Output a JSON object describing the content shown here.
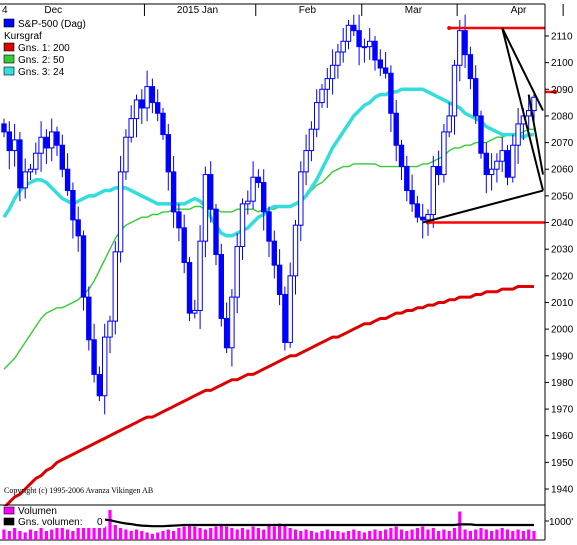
{
  "chart_data": {
    "type": "candlestick",
    "y_unit_note": "",
    "x_axis": {
      "labels": [
        {
          "text": "4",
          "at_index": 0
        },
        {
          "text": "Dec",
          "at_index": 8
        },
        {
          "text": "2015 Jan",
          "at_index": 33
        },
        {
          "text": "Feb",
          "at_index": 56
        },
        {
          "text": "Mar",
          "at_index": 76
        },
        {
          "text": "Apr",
          "at_index": 96
        }
      ],
      "separator_indices": [
        27,
        48,
        68,
        86,
        106
      ]
    },
    "y_axis": {
      "min": 1934,
      "max": 2122,
      "ticks": [
        1940,
        1950,
        1960,
        1970,
        1980,
        1990,
        2000,
        2010,
        2020,
        2030,
        2040,
        2050,
        2060,
        2070,
        2080,
        2090,
        2100,
        2110
      ]
    },
    "grid": false,
    "legend": {
      "placement": "top-left",
      "entries": [
        {
          "label": "S&P-500 (Dag)",
          "color": "#0000ff",
          "kind": "box"
        },
        {
          "label": "Kursgraf",
          "color": "",
          "kind": "header"
        },
        {
          "label": "Gns. 1: 200",
          "color": "#dd0000",
          "kind": "box"
        },
        {
          "label": "Gns. 2: 50",
          "color": "#33cc33",
          "kind": "box"
        },
        {
          "label": "Gns. 3: 24",
          "color": "#33dddd",
          "kind": "box"
        }
      ]
    },
    "copyright": "Copyright (c) 1995-2006 Avanza Vikingen AB",
    "colors": {
      "up_candle": "#ffffff",
      "down_candle": "#0000ff",
      "candle_outline": "#0000ff",
      "ma200": "#dd0000",
      "ma50": "#33cc33",
      "ma24": "#33dddd",
      "resistance": "#ff0000",
      "trendline": "#000000"
    },
    "close": [
      2074,
      2067,
      2071,
      2053,
      2059,
      2060,
      2066,
      2072,
      2068,
      2074,
      2069,
      2060,
      2052,
      2041,
      2035,
      2012,
      1996,
      1983,
      1975,
      1997,
      2003,
      2029,
      2059,
      2072,
      2079,
      2086,
      2083,
      2091,
      2085,
      2081,
      2073,
      2059,
      2044,
      2038,
      2025,
      2006,
      2007,
      2033,
      2058,
      2045,
      2028,
      2004,
      1993,
      2012,
      2031,
      2047,
      2048,
      2057,
      2055,
      2044,
      2033,
      2024,
      2013,
      1995,
      2020,
      2039,
      2059,
      2067,
      2075,
      2085,
      2090,
      2094,
      2099,
      2104,
      2108,
      2114,
      2112,
      2106,
      2106,
      2108,
      2101,
      2098,
      2096,
      2081,
      2069,
      2061,
      2052,
      2047,
      2042,
      2041,
      2043,
      2061,
      2058,
      2074,
      2080,
      2099,
      2112,
      2103,
      2094,
      2080,
      2066,
      2058,
      2060,
      2063,
      2067,
      2057,
      2069,
      2077,
      2080,
      2082,
      2087
    ],
    "series": [
      {
        "name": "Gns. 1: 200",
        "values": [
          1933,
          1935,
          1937,
          1938,
          1940,
          1942,
          1944,
          1945,
          1947,
          1948,
          1950,
          1951,
          1952,
          1953,
          1954,
          1955,
          1956,
          1957,
          1958,
          1959,
          1960,
          1961,
          1962,
          1963,
          1964,
          1965,
          1966,
          1967,
          1967,
          1968,
          1969,
          1970,
          1971,
          1972,
          1973,
          1974,
          1975,
          1976,
          1977,
          1977,
          1978,
          1979,
          1980,
          1981,
          1981,
          1982,
          1983,
          1983,
          1984,
          1985,
          1986,
          1987,
          1988,
          1989,
          1990,
          1990,
          1991,
          1992,
          1993,
          1994,
          1995,
          1996,
          1997,
          1997,
          1998,
          1999,
          2000,
          2001,
          2002,
          2002,
          2003,
          2004,
          2004,
          2005,
          2006,
          2006,
          2007,
          2007,
          2008,
          2008,
          2009,
          2009,
          2010,
          2010,
          2011,
          2011,
          2012,
          2012,
          2012,
          2013,
          2013,
          2014,
          2014,
          2014,
          2015,
          2015,
          2015,
          2016,
          2016,
          2016,
          2016
        ]
      },
      {
        "name": "Gns. 2: 50",
        "values": [
          1985,
          1987,
          1989,
          1992,
          1995,
          1998,
          2001,
          2004,
          2006,
          2007,
          2008,
          2008,
          2009,
          2010,
          2011,
          2013,
          2015,
          2018,
          2022,
          2026,
          2030,
          2034,
          2037,
          2039,
          2040,
          2041,
          2042,
          2042,
          2043,
          2043,
          2044,
          2044,
          2045,
          2045,
          2045,
          2045,
          2046,
          2046,
          2045,
          2045,
          2045,
          2044,
          2044,
          2044,
          2045,
          2045,
          2045,
          2045,
          2044,
          2045,
          2045,
          2045,
          2046,
          2046,
          2046,
          2047,
          2048,
          2050,
          2052,
          2054,
          2055,
          2057,
          2059,
          2060,
          2061,
          2061,
          2062,
          2062,
          2062,
          2062,
          2062,
          2061,
          2061,
          2061,
          2061,
          2061,
          2061,
          2061,
          2061,
          2062,
          2062,
          2063,
          2064,
          2065,
          2067,
          2068,
          2068,
          2069,
          2069,
          2070,
          2070,
          2070,
          2071,
          2072,
          2072,
          2073,
          2073,
          2073,
          2074,
          2075,
          2075
        ]
      },
      {
        "name": "Gns. 3: 24",
        "values": [
          2042,
          2045,
          2049,
          2052,
          2054,
          2055,
          2056,
          2056,
          2055,
          2053,
          2051,
          2049,
          2048,
          2047,
          2048,
          2049,
          2050,
          2050,
          2051,
          2052,
          2052,
          2053,
          2053,
          2053,
          2052,
          2051,
          2050,
          2049,
          2048,
          2047,
          2047,
          2047,
          2047,
          2047,
          2047,
          2048,
          2049,
          2048,
          2046,
          2042,
          2039,
          2036,
          2035,
          2035,
          2036,
          2037,
          2038,
          2040,
          2042,
          2043,
          2045,
          2046,
          2046,
          2046,
          2046,
          2047,
          2048,
          2050,
          2053,
          2056,
          2060,
          2064,
          2068,
          2071,
          2074,
          2077,
          2080,
          2082,
          2084,
          2085,
          2087,
          2088,
          2088,
          2089,
          2089,
          2090,
          2090,
          2090,
          2090,
          2090,
          2089,
          2088,
          2087,
          2086,
          2085,
          2084,
          2083,
          2081,
          2080,
          2079,
          2078,
          2076,
          2075,
          2074,
          2073,
          2073,
          2073,
          2073,
          2072,
          2073,
          2073
        ]
      }
    ],
    "annotations": {
      "horizontal_lines": [
        {
          "y": 2113,
          "from_index": 84,
          "to_index": 110
        },
        {
          "y": 2089,
          "from_index": 104,
          "to_index": 110
        },
        {
          "y": 2040,
          "from_index": 80,
          "to_index": 110
        }
      ],
      "trendlines": [
        {
          "from": [
            94,
            2113
          ],
          "to": [
            109,
            2052
          ]
        },
        {
          "from": [
            94,
            2113
          ],
          "to": [
            109,
            2082
          ]
        },
        {
          "from": [
            79,
            2040
          ],
          "to": [
            109,
            2052
          ]
        },
        {
          "from": [
            99,
            2088
          ],
          "to": [
            106,
            2058
          ]
        }
      ]
    },
    "volume_panel": {
      "legend": [
        {
          "label": "Volumen",
          "color": "#ff00ff"
        },
        {
          "label": "Gns. volumen:",
          "color": "#000000",
          "value": "0"
        }
      ],
      "axis_label": "1000'",
      "volume": [
        0.35,
        0.3,
        0.4,
        0.3,
        0.25,
        0.35,
        0.3,
        0.4,
        0.3,
        0.35,
        0.4,
        0.45,
        0.35,
        0.3,
        0.4,
        0.5,
        0.45,
        0.5,
        0.55,
        0.45,
        1.0,
        0.5,
        0.4,
        0.35,
        0.3,
        0.35,
        0.3,
        0.25,
        0.2,
        0.25,
        0.3,
        0.35,
        0.3,
        0.4,
        0.45,
        0.5,
        0.45,
        0.4,
        0.35,
        0.4,
        0.45,
        0.5,
        0.45,
        0.4,
        0.35,
        0.4,
        0.35,
        0.45,
        0.4,
        0.35,
        0.5,
        0.45,
        0.55,
        0.5,
        0.4,
        0.35,
        0.3,
        0.35,
        0.3,
        0.25,
        0.3,
        0.35,
        0.3,
        0.3,
        0.25,
        0.3,
        0.35,
        0.3,
        0.25,
        0.3,
        0.35,
        0.3,
        0.35,
        0.4,
        0.45,
        0.35,
        0.3,
        0.35,
        0.4,
        0.45,
        0.35,
        0.4,
        0.3,
        0.35,
        0.3,
        0.4,
        0.95,
        0.35,
        0.3,
        0.35,
        0.4,
        0.35,
        0.3,
        0.35,
        0.4,
        0.35,
        0.3,
        0.35,
        0.3,
        0.35,
        0.3
      ],
      "avg": [
        0.5,
        0.52,
        0.55,
        0.55,
        0.54,
        0.52,
        0.5,
        0.5,
        0.52,
        0.55,
        0.57,
        0.58,
        0.6,
        0.62,
        0.65,
        0.68,
        0.7,
        0.7,
        0.69,
        0.68,
        0.66,
        0.62,
        0.58,
        0.55,
        0.53,
        0.5,
        0.48,
        0.47,
        0.46,
        0.46,
        0.46,
        0.47,
        0.48,
        0.49,
        0.5,
        0.5,
        0.5,
        0.5,
        0.5,
        0.5,
        0.5,
        0.5,
        0.5,
        0.5,
        0.5,
        0.5,
        0.5,
        0.5,
        0.5,
        0.5,
        0.5,
        0.5,
        0.5,
        0.5,
        0.5,
        0.5,
        0.5,
        0.5,
        0.5,
        0.5,
        0.5,
        0.5,
        0.5,
        0.5,
        0.5,
        0.5,
        0.5,
        0.5,
        0.5,
        0.5,
        0.5,
        0.5,
        0.5,
        0.5,
        0.5,
        0.5,
        0.5,
        0.5,
        0.5,
        0.5,
        0.5,
        0.5,
        0.5,
        0.5,
        0.5,
        0.5,
        0.52,
        0.52,
        0.52,
        0.5,
        0.5,
        0.5,
        0.5,
        0.5,
        0.5,
        0.5,
        0.5,
        0.5,
        0.5,
        0.5,
        0.5
      ]
    }
  }
}
